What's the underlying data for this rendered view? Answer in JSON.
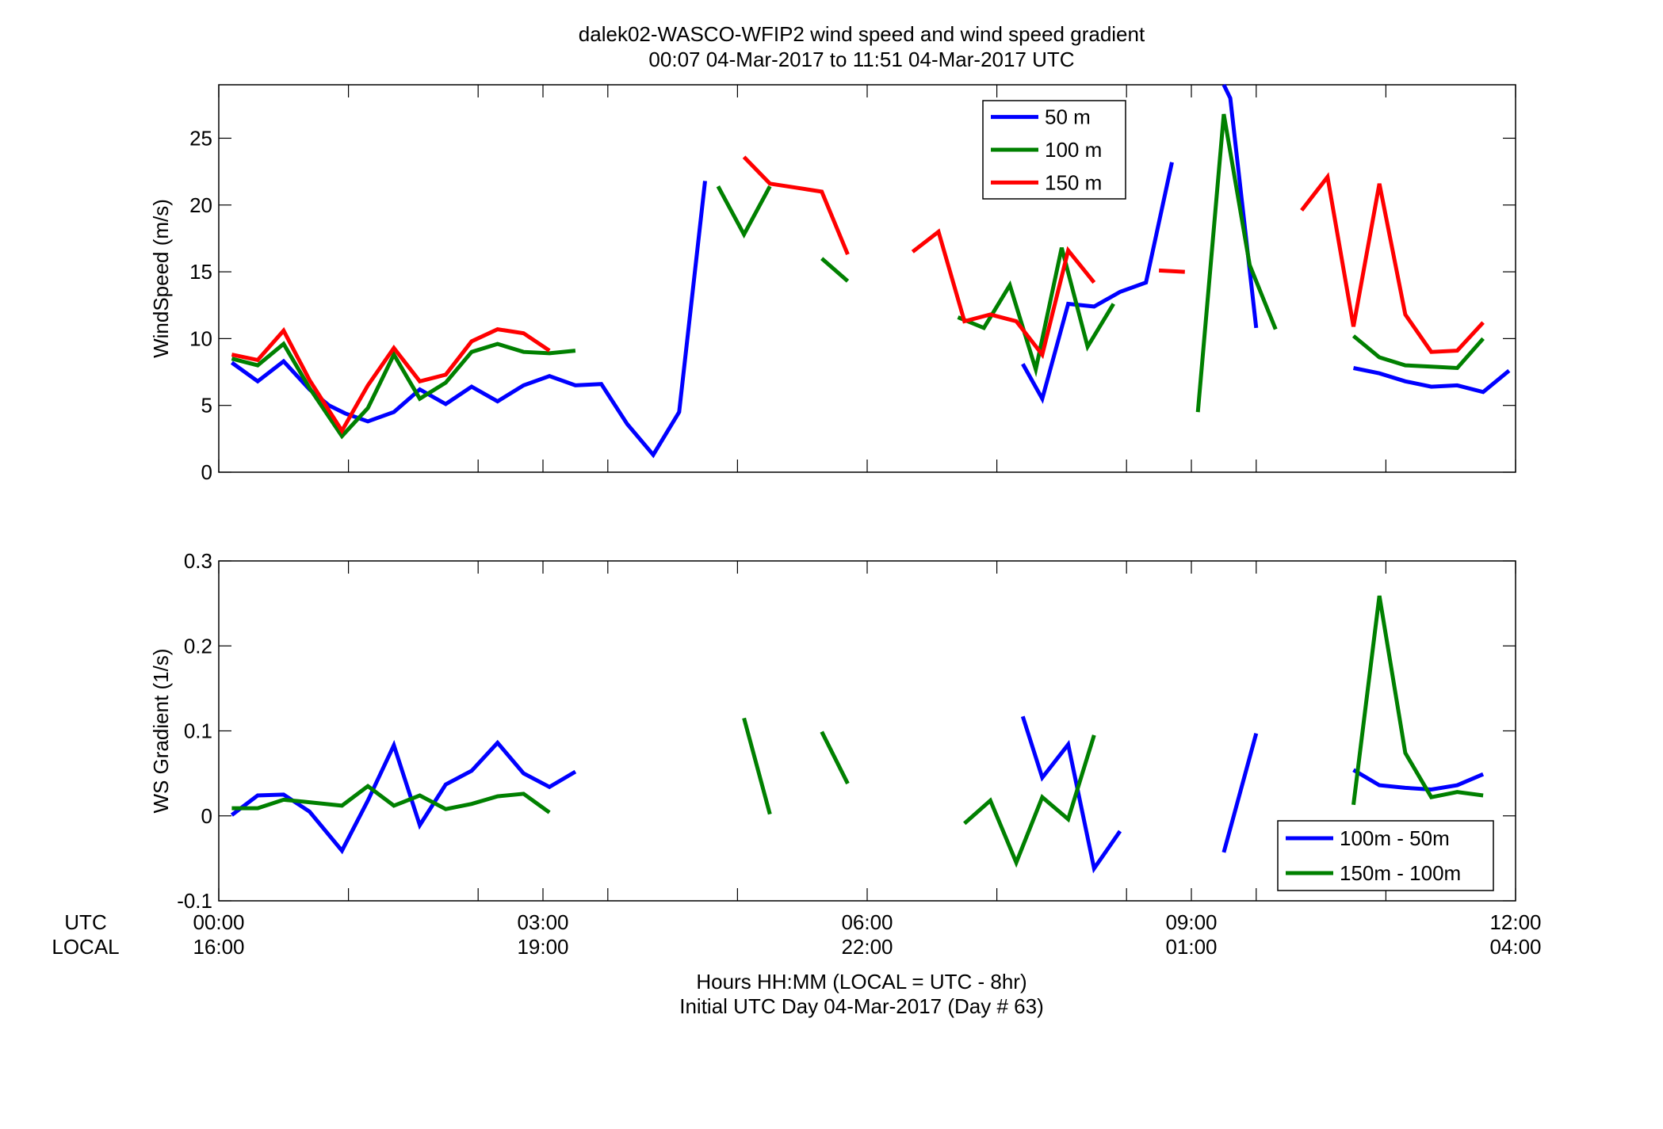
{
  "figure": {
    "title_line1": "dalek02-WASCO-WFIP2  wind speed and wind speed gradient",
    "title_line2": "00:07 04-Mar-2017 to 11:51 04-Mar-2017  UTC",
    "xlabel_line1": "Hours HH:MM  (LOCAL = UTC - 8hr)",
    "xlabel_line2": "Initial UTC Day 04-Mar-2017 (Day # 63)",
    "row_label_utc": "UTC",
    "row_label_local": "LOCAL"
  },
  "colors": {
    "blue": "#0000ff",
    "green": "#008000",
    "red": "#ff0000"
  },
  "chart_data": [
    {
      "type": "line",
      "title": "",
      "ylabel": "WindSpeed (m/s)",
      "xlabel": "",
      "xlim": [
        0,
        12
      ],
      "ylim": [
        0,
        29
      ],
      "yticks": [
        0,
        5,
        10,
        15,
        20,
        25
      ],
      "ytick_labels": [
        "0",
        "5",
        "10",
        "15",
        "20",
        "25"
      ],
      "xticks": [
        0,
        1.2,
        2.4,
        3,
        3.6,
        4.8,
        6,
        7.2,
        8.4,
        9,
        9.6,
        10.8,
        12
      ],
      "major_xticks": [
        0,
        3,
        6,
        9,
        12
      ],
      "xtick_labels_utc": [
        "00:00",
        "03:00",
        "06:00",
        "09:00",
        "12:00"
      ],
      "xtick_labels_local": [
        "16:00",
        "19:00",
        "22:00",
        "01:00",
        "04:00"
      ],
      "grid": false,
      "legend": "top-center",
      "series": [
        {
          "name": "50 m",
          "color": "#0000ff",
          "segments": [
            [
              [
                0.12,
                8.2
              ],
              [
                0.36,
                6.8
              ],
              [
                0.6,
                8.3
              ],
              [
                0.84,
                6.2
              ],
              [
                1.02,
                5.0
              ],
              [
                1.17,
                4.4
              ],
              [
                1.38,
                3.8
              ],
              [
                1.62,
                4.5
              ],
              [
                1.86,
                6.2
              ],
              [
                2.1,
                5.1
              ],
              [
                2.34,
                6.4
              ],
              [
                2.58,
                5.3
              ],
              [
                2.82,
                6.5
              ],
              [
                3.06,
                7.2
              ],
              [
                3.3,
                6.5
              ],
              [
                3.54,
                6.6
              ],
              [
                3.78,
                3.6
              ],
              [
                4.02,
                1.3
              ],
              [
                4.26,
                4.5
              ],
              [
                4.5,
                21.8
              ]
            ],
            [
              [
                7.44,
                8.1
              ],
              [
                7.62,
                5.5
              ],
              [
                7.86,
                12.6
              ],
              [
                8.1,
                12.4
              ],
              [
                8.34,
                13.5
              ],
              [
                8.58,
                14.2
              ],
              [
                8.82,
                23.2
              ]
            ],
            [
              [
                9.3,
                29.0
              ],
              [
                9.36,
                28.0
              ],
              [
                9.6,
                10.8
              ]
            ],
            [
              [
                10.5,
                7.8
              ],
              [
                10.74,
                7.4
              ],
              [
                10.98,
                6.8
              ],
              [
                11.22,
                6.4
              ],
              [
                11.46,
                6.5
              ],
              [
                11.7,
                6.0
              ],
              [
                11.94,
                7.6
              ]
            ]
          ]
        },
        {
          "name": "100 m",
          "color": "#008000",
          "segments": [
            [
              [
                0.12,
                8.5
              ],
              [
                0.36,
                8.0
              ],
              [
                0.6,
                9.6
              ],
              [
                0.84,
                6.3
              ],
              [
                1.14,
                2.7
              ],
              [
                1.38,
                4.8
              ],
              [
                1.62,
                8.8
              ],
              [
                1.86,
                5.5
              ],
              [
                2.1,
                6.7
              ],
              [
                2.34,
                9.0
              ],
              [
                2.58,
                9.6
              ],
              [
                2.82,
                9.0
              ],
              [
                3.06,
                8.9
              ],
              [
                3.3,
                9.1
              ]
            ],
            [
              [
                4.62,
                21.4
              ],
              [
                4.86,
                17.8
              ],
              [
                5.1,
                21.4
              ]
            ],
            [
              [
                5.58,
                16.0
              ],
              [
                5.82,
                14.3
              ]
            ],
            [
              [
                6.84,
                11.6
              ],
              [
                7.08,
                10.8
              ],
              [
                7.32,
                14.0
              ],
              [
                7.56,
                7.7
              ],
              [
                7.8,
                16.8
              ],
              [
                8.04,
                9.4
              ],
              [
                8.28,
                12.6
              ]
            ],
            [
              [
                9.06,
                4.5
              ],
              [
                9.3,
                26.8
              ],
              [
                9.54,
                15.5
              ],
              [
                9.78,
                10.7
              ]
            ],
            [
              [
                10.5,
                10.2
              ],
              [
                10.74,
                8.6
              ],
              [
                10.98,
                8.0
              ],
              [
                11.22,
                7.9
              ],
              [
                11.46,
                7.8
              ],
              [
                11.7,
                10.0
              ]
            ]
          ]
        },
        {
          "name": "150 m",
          "color": "#ff0000",
          "segments": [
            [
              [
                0.12,
                8.8
              ],
              [
                0.36,
                8.4
              ],
              [
                0.6,
                10.6
              ],
              [
                0.84,
                6.9
              ],
              [
                1.14,
                3.1
              ],
              [
                1.38,
                6.5
              ],
              [
                1.62,
                9.3
              ],
              [
                1.86,
                6.8
              ],
              [
                2.1,
                7.3
              ],
              [
                2.34,
                9.8
              ],
              [
                2.58,
                10.7
              ],
              [
                2.82,
                10.4
              ],
              [
                3.06,
                9.1
              ]
            ],
            [
              [
                4.86,
                23.6
              ],
              [
                5.1,
                21.6
              ],
              [
                5.34,
                21.3
              ],
              [
                5.58,
                21.0
              ],
              [
                5.82,
                16.3
              ]
            ],
            [
              [
                6.42,
                16.5
              ],
              [
                6.66,
                18.0
              ],
              [
                6.9,
                11.3
              ],
              [
                7.14,
                11.8
              ],
              [
                7.38,
                11.3
              ],
              [
                7.62,
                8.8
              ],
              [
                7.86,
                16.6
              ],
              [
                8.1,
                14.2
              ]
            ],
            [
              [
                8.7,
                15.1
              ],
              [
                8.94,
                15.0
              ]
            ],
            [
              [
                10.02,
                19.6
              ],
              [
                10.26,
                22.1
              ],
              [
                10.5,
                10.9
              ],
              [
                10.74,
                21.6
              ],
              [
                10.98,
                11.8
              ],
              [
                11.22,
                9.0
              ],
              [
                11.46,
                9.1
              ],
              [
                11.7,
                11.2
              ]
            ]
          ]
        }
      ]
    },
    {
      "type": "line",
      "title": "",
      "ylabel": "WS Gradient (1/s)",
      "xlabel": "",
      "xlim": [
        0,
        12
      ],
      "ylim": [
        -0.1,
        0.3
      ],
      "yticks": [
        -0.1,
        0,
        0.1,
        0.2,
        0.3
      ],
      "ytick_labels": [
        "-0.1",
        "0",
        "0.1",
        "0.2",
        "0.3"
      ],
      "xticks": [
        0,
        1.2,
        2.4,
        3,
        3.6,
        4.8,
        6,
        7.2,
        8.4,
        9,
        9.6,
        10.8,
        12
      ],
      "major_xticks": [
        0,
        3,
        6,
        9,
        12
      ],
      "grid": false,
      "legend": "bottom-right",
      "series": [
        {
          "name": "100m - 50m",
          "color": "#0000ff",
          "segments": [
            [
              [
                0.12,
                0.001
              ],
              [
                0.36,
                0.024
              ],
              [
                0.6,
                0.025
              ],
              [
                0.84,
                0.005
              ],
              [
                1.14,
                -0.041
              ],
              [
                1.38,
                0.018
              ],
              [
                1.62,
                0.083
              ],
              [
                1.86,
                -0.011
              ],
              [
                2.1,
                0.037
              ],
              [
                2.34,
                0.053
              ],
              [
                2.58,
                0.086
              ],
              [
                2.82,
                0.05
              ],
              [
                3.06,
                0.034
              ],
              [
                3.3,
                0.052
              ]
            ],
            [
              [
                7.44,
                0.117
              ],
              [
                7.62,
                0.045
              ],
              [
                7.86,
                0.084
              ],
              [
                8.1,
                -0.062
              ],
              [
                8.34,
                -0.018
              ]
            ],
            [
              [
                9.3,
                -0.043
              ],
              [
                9.6,
                0.097
              ]
            ],
            [
              [
                10.5,
                0.054
              ],
              [
                10.74,
                0.036
              ],
              [
                10.98,
                0.033
              ],
              [
                11.22,
                0.031
              ],
              [
                11.46,
                0.036
              ],
              [
                11.7,
                0.049
              ]
            ]
          ]
        },
        {
          "name": "150m - 100m",
          "color": "#008000",
          "segments": [
            [
              [
                0.12,
                0.009
              ],
              [
                0.36,
                0.009
              ],
              [
                0.6,
                0.019
              ],
              [
                0.84,
                0.016
              ],
              [
                1.14,
                0.012
              ],
              [
                1.38,
                0.035
              ],
              [
                1.62,
                0.012
              ],
              [
                1.86,
                0.024
              ],
              [
                2.1,
                0.008
              ],
              [
                2.34,
                0.014
              ],
              [
                2.58,
                0.023
              ],
              [
                2.82,
                0.026
              ],
              [
                3.06,
                0.004
              ]
            ],
            [
              [
                4.86,
                0.115
              ],
              [
                5.1,
                0.002
              ]
            ],
            [
              [
                5.58,
                0.099
              ],
              [
                5.82,
                0.038
              ]
            ],
            [
              [
                6.9,
                -0.009
              ],
              [
                7.14,
                0.018
              ],
              [
                7.38,
                -0.055
              ],
              [
                7.62,
                0.022
              ],
              [
                7.86,
                -0.004
              ],
              [
                8.1,
                0.095
              ]
            ],
            [
              [
                10.5,
                0.013
              ],
              [
                10.74,
                0.259
              ],
              [
                10.98,
                0.074
              ],
              [
                11.22,
                0.022
              ],
              [
                11.46,
                0.028
              ],
              [
                11.7,
                0.024
              ]
            ]
          ]
        }
      ]
    }
  ]
}
